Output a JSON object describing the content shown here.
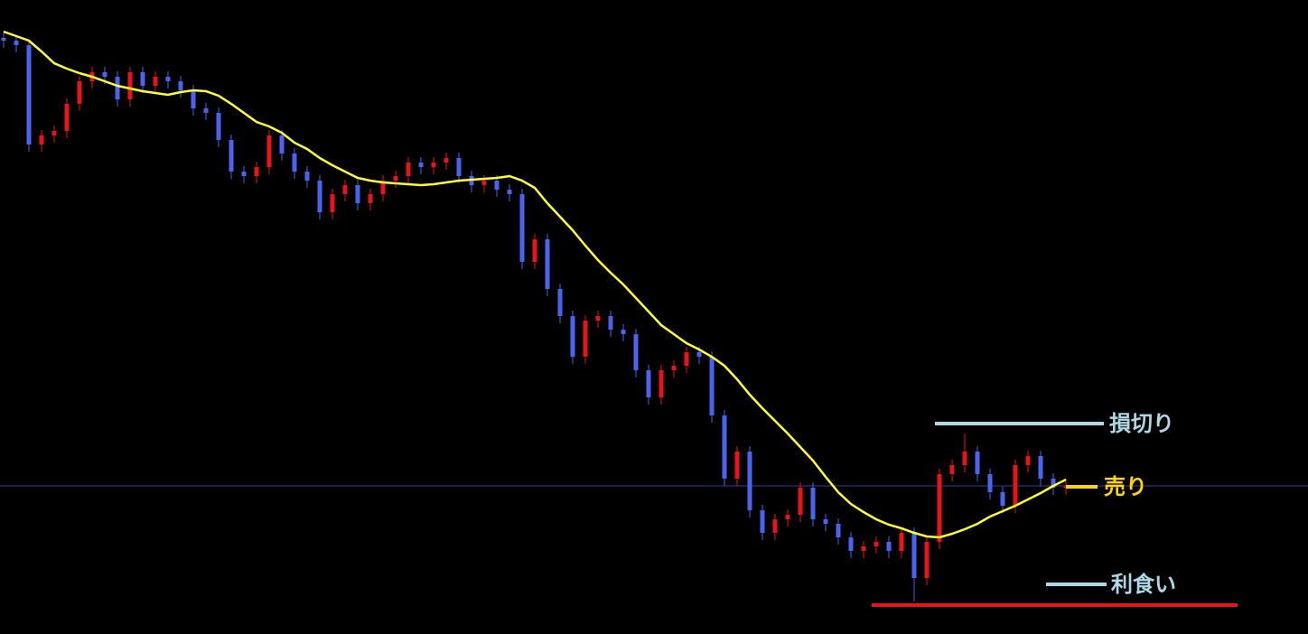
{
  "chart_data": {
    "type": "candlestick",
    "background": "#000000",
    "ylim": [
      0,
      702
    ],
    "up_color": "#e8141c",
    "down_color": "#4a64f0",
    "open": [
      660,
      657,
      652,
      542,
      552,
      557,
      587,
      612,
      622,
      617,
      592,
      622,
      607,
      617,
      612,
      602,
      582,
      577,
      547,
      512,
      507,
      517,
      552,
      532,
      512,
      502,
      467,
      487,
      497,
      477,
      487,
      502,
      507,
      522,
      517,
      522,
      527,
      507,
      497,
      502,
      492,
      487,
      412,
      437,
      382,
      352,
      307,
      347,
      352,
      337,
      332,
      292,
      262,
      292,
      297,
      312,
      307,
      242,
      172,
      202,
      137,
      112,
      127,
      132,
      162,
      127,
      122,
      107,
      92,
      97,
      102,
      92,
      112,
      62,
      102,
      177,
      187,
      202,
      177,
      157,
      142,
      187,
      197,
      172,
      162
    ],
    "high": [
      666,
      663,
      658,
      558,
      563,
      593,
      618,
      628,
      628,
      623,
      628,
      628,
      623,
      623,
      618,
      608,
      588,
      583,
      553,
      518,
      523,
      558,
      558,
      538,
      518,
      508,
      493,
      503,
      503,
      493,
      508,
      513,
      528,
      528,
      528,
      533,
      533,
      513,
      508,
      508,
      498,
      493,
      443,
      443,
      388,
      358,
      353,
      358,
      358,
      343,
      338,
      298,
      298,
      303,
      318,
      318,
      313,
      248,
      208,
      208,
      143,
      133,
      138,
      168,
      168,
      133,
      128,
      113,
      103,
      108,
      108,
      118,
      118,
      108,
      183,
      193,
      222,
      208,
      183,
      163,
      193,
      203,
      203,
      178,
      172
    ],
    "low": [
      649,
      644,
      534,
      534,
      544,
      549,
      579,
      604,
      609,
      584,
      584,
      599,
      599,
      604,
      594,
      574,
      569,
      539,
      504,
      499,
      499,
      509,
      524,
      504,
      494,
      459,
      459,
      479,
      469,
      469,
      479,
      494,
      499,
      509,
      509,
      514,
      499,
      489,
      489,
      484,
      479,
      404,
      404,
      374,
      344,
      299,
      299,
      339,
      329,
      324,
      284,
      254,
      254,
      284,
      289,
      299,
      234,
      164,
      164,
      129,
      104,
      104,
      119,
      124,
      119,
      114,
      99,
      84,
      84,
      89,
      84,
      84,
      36,
      54,
      94,
      169,
      179,
      169,
      149,
      134,
      134,
      179,
      164,
      154,
      154
    ],
    "close": [
      657,
      652,
      542,
      552,
      557,
      587,
      612,
      622,
      617,
      592,
      622,
      607,
      617,
      612,
      602,
      582,
      577,
      547,
      512,
      507,
      517,
      552,
      532,
      512,
      502,
      467,
      487,
      497,
      477,
      487,
      502,
      507,
      522,
      517,
      522,
      527,
      507,
      497,
      502,
      492,
      487,
      412,
      437,
      382,
      352,
      307,
      347,
      352,
      337,
      332,
      292,
      262,
      292,
      297,
      312,
      307,
      242,
      172,
      202,
      137,
      112,
      127,
      132,
      162,
      127,
      122,
      107,
      92,
      97,
      102,
      92,
      112,
      62,
      102,
      177,
      187,
      202,
      177,
      157,
      142,
      187,
      197,
      172,
      162,
      164
    ],
    "moving_average": {
      "color": "#ffff33",
      "values": [
        667,
        662,
        657,
        645,
        632,
        626,
        621,
        617,
        612,
        607,
        604,
        601,
        599,
        597,
        600,
        602,
        601,
        596,
        587,
        577,
        567,
        562,
        555,
        544,
        537,
        527,
        519,
        512,
        505,
        502,
        500,
        499,
        498,
        497,
        498,
        500,
        502,
        503,
        504,
        505,
        507,
        502,
        494,
        477,
        462,
        447,
        430,
        414,
        400,
        387,
        372,
        357,
        342,
        332,
        322,
        315,
        307,
        297,
        282,
        265,
        250,
        236,
        222,
        207,
        192,
        174,
        157,
        144,
        135,
        127,
        121,
        117,
        112,
        108,
        107,
        111,
        116,
        122,
        130,
        136,
        142,
        149,
        156,
        164,
        171
      ]
    },
    "current_price": {
      "value": 164,
      "color": "#3a3aa0"
    },
    "levels": [
      {
        "label": "損切り",
        "value": 233,
        "color": "#add8e6"
      },
      {
        "label": "売り",
        "value": 163,
        "color": "#ffd700"
      },
      {
        "label": "利食い",
        "value": 55,
        "color": "#add8e6"
      },
      {
        "value": 32,
        "color": "#e8141c"
      }
    ]
  }
}
